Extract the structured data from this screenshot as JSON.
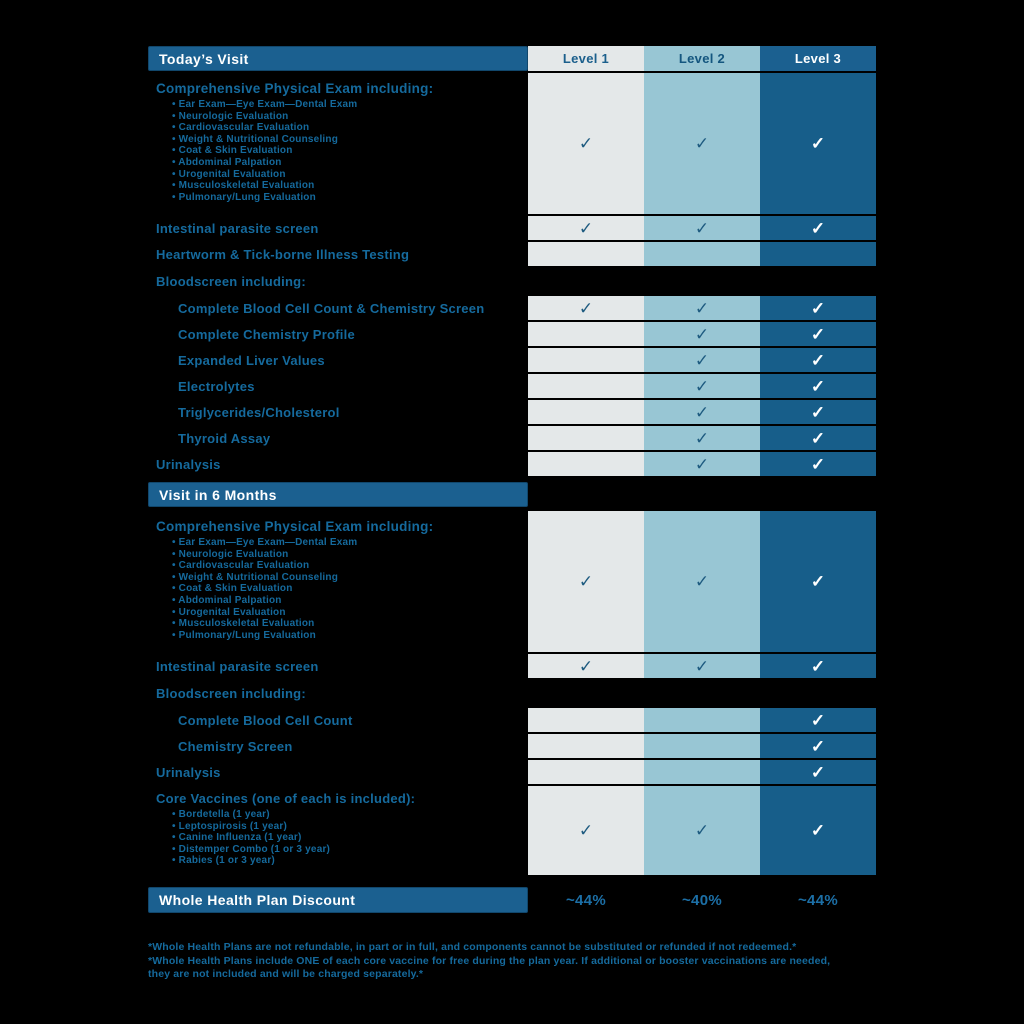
{
  "theme": {
    "background": "#000000",
    "bar_blue": "#1B6090",
    "level1_bg": "#E4E8E9",
    "level2_bg": "#98C6D4",
    "level3_bg": "#175E8A",
    "label_text_blue": "#156A9D",
    "check_dark": "#1E5B80",
    "check_light": "#FFFFFF",
    "check_glyph": "✓"
  },
  "columns": [
    "Level 1",
    "Level 2",
    "Level 3"
  ],
  "sections": [
    {
      "title": "Today’s Visit",
      "rows": [
        {
          "kind": "exam",
          "label": "Comprehensive Physical Exam including:",
          "bullets": [
            "• Ear Exam—Eye Exam—Dental Exam",
            "• Neurologic Evaluation",
            "• Cardiovascular Evaluation",
            "• Weight & Nutritional Counseling",
            "• Coat & Skin Evaluation",
            "• Abdominal Palpation",
            "• Urogenital Evaluation",
            "• Musculoskeletal Evaluation",
            "• Pulmonary/Lung Evaluation"
          ],
          "checks": [
            true,
            true,
            true
          ]
        },
        {
          "kind": "item",
          "label": "Intestinal parasite screen",
          "checks": [
            true,
            true,
            true
          ]
        },
        {
          "kind": "item",
          "label": "Heartworm & Tick-borne Illness Testing",
          "checks": [
            false,
            false,
            false
          ]
        },
        {
          "kind": "heading",
          "label": "Bloodscreen including:"
        },
        {
          "kind": "item",
          "indent": true,
          "label": "Complete Blood Cell Count & Chemistry Screen",
          "checks": [
            true,
            true,
            true
          ]
        },
        {
          "kind": "item",
          "indent": true,
          "label": "Complete Chemistry Profile",
          "checks": [
            false,
            true,
            true
          ]
        },
        {
          "kind": "item",
          "indent": true,
          "label": "Expanded Liver Values",
          "checks": [
            false,
            true,
            true
          ]
        },
        {
          "kind": "item",
          "indent": true,
          "label": "Electrolytes",
          "checks": [
            false,
            true,
            true
          ]
        },
        {
          "kind": "item",
          "indent": true,
          "label": "Triglycerides/Cholesterol",
          "checks": [
            false,
            true,
            true
          ]
        },
        {
          "kind": "item",
          "indent": true,
          "label": "Thyroid Assay",
          "checks": [
            false,
            true,
            true
          ]
        },
        {
          "kind": "item",
          "label": "Urinalysis",
          "checks": [
            false,
            true,
            true
          ]
        }
      ]
    },
    {
      "title": "Visit in 6 Months",
      "rows": [
        {
          "kind": "exam",
          "label": "Comprehensive Physical Exam including:",
          "bullets": [
            "• Ear Exam—Eye Exam—Dental Exam",
            "• Neurologic Evaluation",
            "• Cardiovascular Evaluation",
            "• Weight & Nutritional Counseling",
            "• Coat & Skin Evaluation",
            "• Abdominal Palpation",
            "• Urogenital Evaluation",
            "• Musculoskeletal Evaluation",
            "• Pulmonary/Lung Evaluation"
          ],
          "checks": [
            true,
            true,
            true
          ]
        },
        {
          "kind": "item",
          "label": "Intestinal parasite screen",
          "checks": [
            true,
            true,
            true
          ]
        },
        {
          "kind": "heading",
          "label": "Bloodscreen including:"
        },
        {
          "kind": "item",
          "indent": true,
          "label": "Complete Blood Cell Count",
          "checks": [
            false,
            false,
            true
          ]
        },
        {
          "kind": "item",
          "indent": true,
          "label": "Chemistry Screen",
          "checks": [
            false,
            false,
            true
          ]
        },
        {
          "kind": "item",
          "label": "Urinalysis",
          "checks": [
            false,
            false,
            true
          ]
        },
        {
          "kind": "vaccines",
          "label": "Core Vaccines (one of each is included):",
          "bullets": [
            "• Bordetella (1 year)",
            "• Leptospirosis (1 year)",
            "• Canine Influenza (1 year)",
            "• Distemper Combo (1 or 3 year)",
            "• Rabies (1 or 3 year)"
          ],
          "checks": [
            true,
            true,
            true
          ]
        }
      ]
    }
  ],
  "discount": {
    "label": "Whole Health Plan Discount",
    "values": [
      "~44%",
      "~40%",
      "~44%"
    ]
  },
  "footnotes": [
    "*Whole Health Plans are not refundable, in part or in full, and components cannot be substituted or refunded if not redeemed.*",
    "*Whole Health Plans include ONE of each core vaccine for free during the plan year. If additional or booster vaccinations are needed,",
    "they are not included and will be charged separately.*"
  ]
}
